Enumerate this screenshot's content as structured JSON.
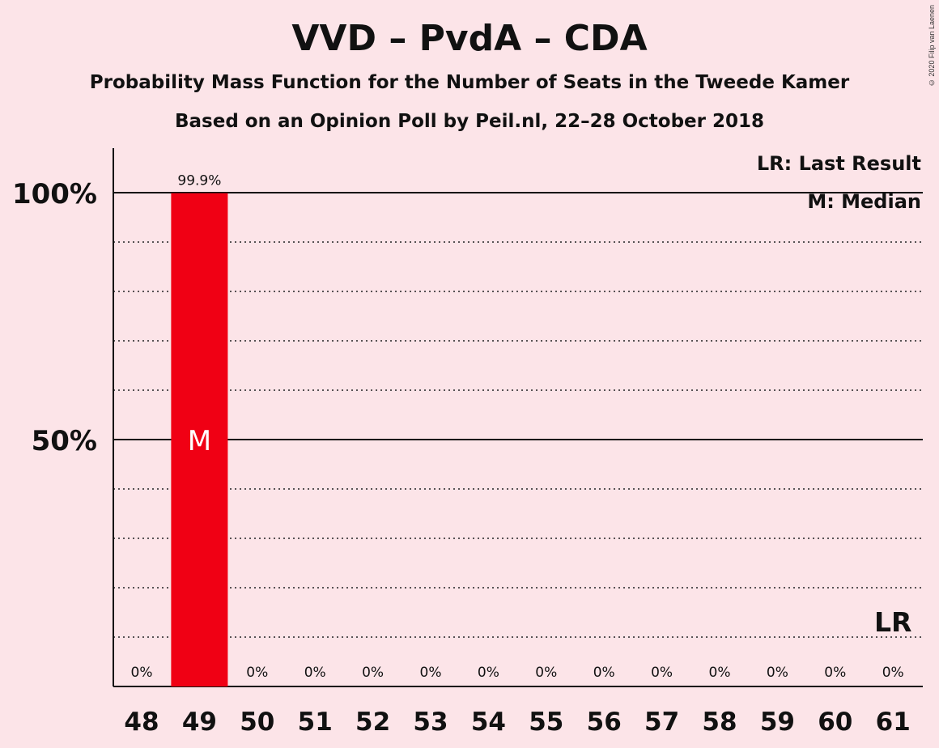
{
  "chart_data": {
    "type": "bar",
    "title": "VVD – PvdA – CDA",
    "subtitle": "Probability Mass Function for the Number of Seats in the Tweede Kamer",
    "subtitle2": "Based on an Opinion Poll by Peil.nl, 22–28 October 2018",
    "categories": [
      "48",
      "49",
      "50",
      "51",
      "52",
      "53",
      "54",
      "55",
      "56",
      "57",
      "58",
      "59",
      "60",
      "61"
    ],
    "values": [
      0,
      99.9,
      0,
      0,
      0,
      0,
      0,
      0,
      0,
      0,
      0,
      0,
      0,
      0
    ],
    "value_labels": [
      "0%",
      "99.9%",
      "0%",
      "0%",
      "0%",
      "0%",
      "0%",
      "0%",
      "0%",
      "0%",
      "0%",
      "0%",
      "0%",
      "0%"
    ],
    "ylim": [
      0,
      100
    ],
    "y_ticks": [
      {
        "value": 50,
        "label": "50%"
      },
      {
        "value": 100,
        "label": "100%"
      }
    ],
    "median_category": "49",
    "median_marker": "M",
    "last_result_category": "61",
    "last_result_marker": "LR",
    "legend": [
      "LR: Last Result",
      "M: Median"
    ],
    "legend_position": "top-right",
    "bar_color": "#f00014",
    "background_color": "#fce4e8"
  },
  "copyright": "© 2020 Filip van Laenen"
}
